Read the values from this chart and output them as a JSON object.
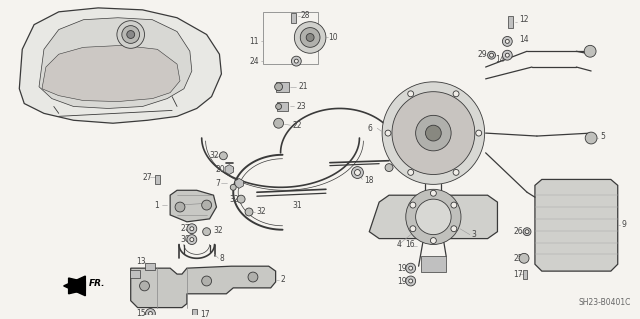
{
  "bg": "#f0ede8",
  "lc": "#3a3a3a",
  "fig_width": 6.4,
  "fig_height": 3.19,
  "dpi": 100,
  "diagram_id": "SH23-B0401C",
  "label_fs": 5.5,
  "label_color": "#444444"
}
